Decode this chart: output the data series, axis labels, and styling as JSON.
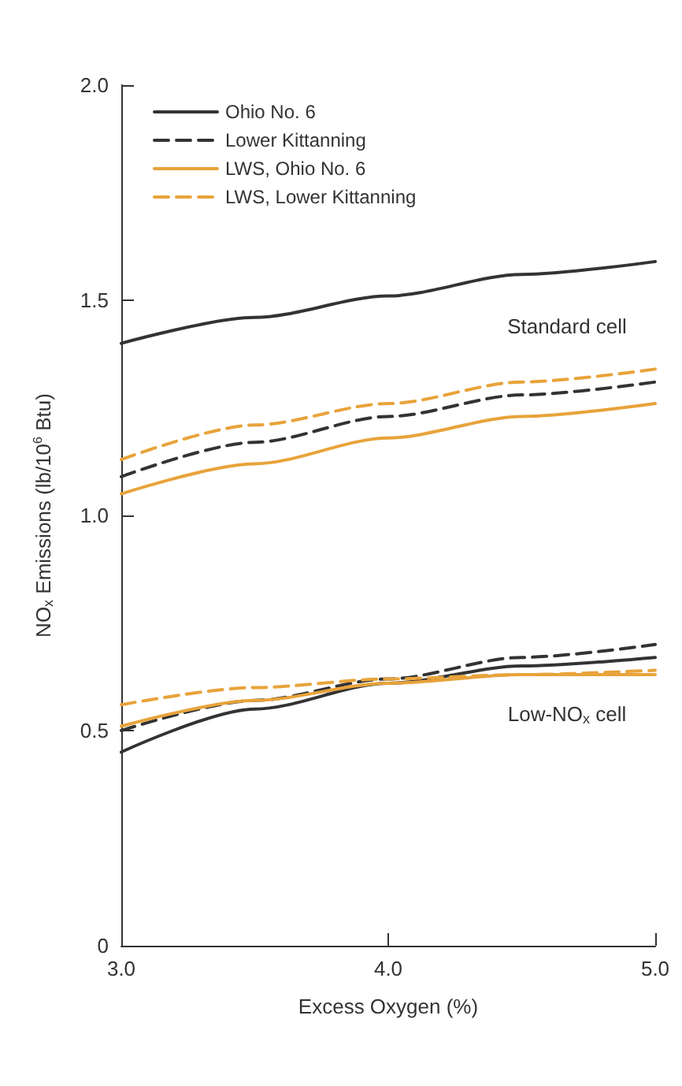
{
  "chart_data": {
    "type": "line",
    "xlabel": "Excess Oxygen (%)",
    "ylabel": "NO$_{x}$ Emissions (lb/10$^{6}$ Btu)",
    "x": [
      3.0,
      3.5,
      4.0,
      4.5,
      5.0
    ],
    "xlim": [
      3.0,
      5.0
    ],
    "xticks": [
      {
        "value": 3,
        "label": "3.0"
      },
      {
        "value": 4,
        "label": "4.0"
      },
      {
        "value": 5,
        "label": "5.0"
      }
    ],
    "ylim": [
      0,
      2.0
    ],
    "yticks": [
      0,
      {
        "value": 0.5,
        "label": "0.5"
      },
      {
        "value": 1,
        "label": "1.0"
      },
      {
        "value": 1.5,
        "label": "1.5"
      },
      {
        "value": 2,
        "label": "2.0"
      }
    ],
    "grid": false,
    "legend": "top left",
    "marker": "none",
    "series": [
      {
        "name": "Ohio No. 6",
        "color": "#333333",
        "line_style": "solid",
        "values": [
          1.4,
          1.46,
          1.51,
          1.56,
          1.59
        ]
      },
      {
        "name": "Lower Kittanning",
        "color": "#333333",
        "line_style": "dashed",
        "values": [
          1.09,
          1.17,
          1.23,
          1.28,
          1.31
        ]
      },
      {
        "name": "LWS, Ohio No. 6",
        "color": "#e8a33a",
        "line_style": "solid",
        "values": [
          1.05,
          1.12,
          1.18,
          1.23,
          1.26
        ]
      },
      {
        "name": "LWS, Lower Kittanning",
        "color": "#e8a33a",
        "line_style": "dashed",
        "values": [
          1.13,
          1.21,
          1.26,
          1.31,
          1.34
        ]
      },
      {
        "color": "#333333",
        "line_style": "solid",
        "values": [
          0.45,
          0.55,
          0.61,
          0.65,
          0.67
        ]
      },
      {
        "color": "#333333",
        "line_style": "dashed",
        "values": [
          0.5,
          0.57,
          0.62,
          0.67,
          0.7
        ]
      },
      {
        "color": "#e8a33a",
        "line_style": "solid",
        "values": [
          0.51,
          0.57,
          0.61,
          0.63,
          0.63
        ]
      },
      {
        "color": "#e8a33a",
        "line_style": "dashed",
        "values": [
          0.56,
          0.6,
          0.62,
          0.63,
          0.64
        ]
      }
    ],
    "annotations": [
      "Standard cell",
      "Low-NO$_{x}$ cell"
    ]
  }
}
